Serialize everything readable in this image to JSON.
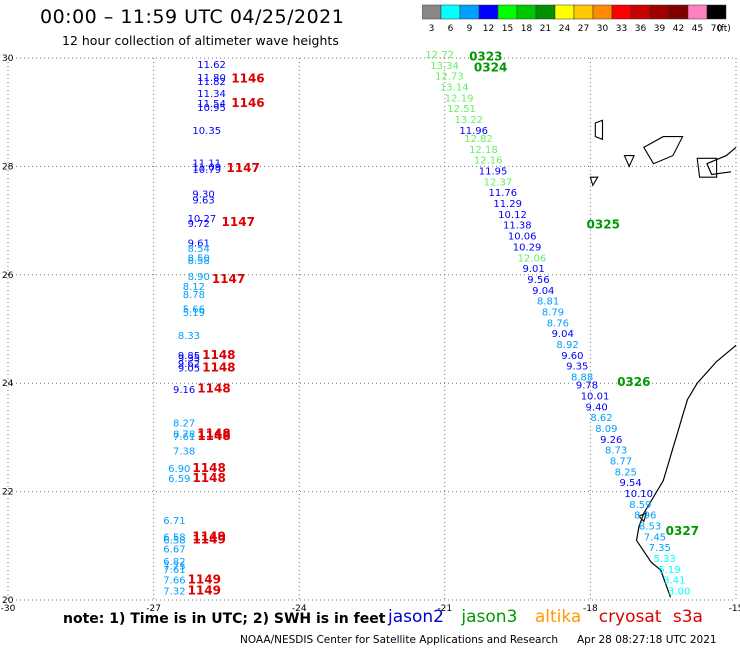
{
  "title": "00:00 – 11:59 UTC 04/25/2021",
  "subtitle": "12 hour collection of altimeter wave heights",
  "scale": {
    "labels": [
      "3",
      "6",
      "9",
      "12",
      "15",
      "18",
      "21",
      "24",
      "27",
      "30",
      "33",
      "36",
      "39",
      "42",
      "45",
      "70",
      "(ft)"
    ],
    "colors": [
      "#888888",
      "#00ffff",
      "#00a0ff",
      "#0000ff",
      "#00ff00",
      "#00c800",
      "#009000",
      "#ffff00",
      "#ffc800",
      "#ff8c00",
      "#ff0000",
      "#c80000",
      "#a00000",
      "#800000",
      "#ff80c0",
      "#000000"
    ]
  },
  "axes": {
    "x_ticks": [
      "-30",
      "-27",
      "-24",
      "-21",
      "-18",
      "-15"
    ],
    "y_ticks": [
      "20",
      "22",
      "24",
      "26",
      "28",
      "30"
    ],
    "xlim": [
      -30,
      -15
    ],
    "ylim": [
      20,
      30
    ]
  },
  "satellites": {
    "jason2": {
      "label": "jason2",
      "color": "#0000cc"
    },
    "jason3": {
      "label": "jason3",
      "color": "#009900"
    },
    "altika": {
      "label": "altika",
      "color": "#ff9900"
    },
    "cryosat": {
      "label": "cryosat",
      "color": "#dd0000"
    },
    "s3a": {
      "label": "s3a",
      "color": "#dd0000"
    }
  },
  "note": "note: 1) Time is in UTC; 2) SWH is in feet",
  "footer": {
    "org": "NOAA/NESDIS Center for Satellite Applications and Research",
    "generated": "Apr 28 08:27:18 UTC 2021"
  },
  "map_data": {
    "track_west": [
      {
        "lon": -26.1,
        "lat": 29.82,
        "v": "11.62",
        "c": "#0000ff"
      },
      {
        "lon": -26.1,
        "lat": 29.58,
        "v": "11.80",
        "c": "#0000ff"
      },
      {
        "lon": -26.1,
        "lat": 29.5,
        "v": "11.82",
        "c": "#0000ff"
      },
      {
        "lon": -26.1,
        "lat": 29.28,
        "v": "11.34",
        "c": "#0000ff"
      },
      {
        "lon": -26.1,
        "lat": 29.1,
        "v": "11.54",
        "c": "#0000ff"
      },
      {
        "lon": -26.1,
        "lat": 29.02,
        "v": "10.95",
        "c": "#0000ff"
      },
      {
        "lon": -26.2,
        "lat": 28.6,
        "v": "10.35",
        "c": "#0000ff"
      },
      {
        "lon": -26.2,
        "lat": 28.0,
        "v": "11.11",
        "c": "#0000ff"
      },
      {
        "lon": -26.2,
        "lat": 27.92,
        "v": "11.09",
        "c": "#0000ff"
      },
      {
        "lon": -26.2,
        "lat": 27.88,
        "v": "10.79",
        "c": "#0000ff"
      },
      {
        "lon": -26.2,
        "lat": 27.43,
        "v": "9.30",
        "c": "#0000ff"
      },
      {
        "lon": -26.2,
        "lat": 27.32,
        "v": "9.63",
        "c": "#0000ff"
      },
      {
        "lon": -26.3,
        "lat": 26.97,
        "v": "10.27",
        "c": "#0000ff"
      },
      {
        "lon": -26.3,
        "lat": 26.88,
        "v": "9.72",
        "c": "#0000ff"
      },
      {
        "lon": -26.3,
        "lat": 26.52,
        "v": "9.61",
        "c": "#0000ff"
      },
      {
        "lon": -26.3,
        "lat": 26.42,
        "v": "8.54",
        "c": "#00a0ff"
      },
      {
        "lon": -26.3,
        "lat": 26.25,
        "v": "8.50",
        "c": "#00a0ff"
      },
      {
        "lon": -26.3,
        "lat": 26.2,
        "v": "8.58",
        "c": "#00a0ff"
      },
      {
        "lon": -26.3,
        "lat": 25.9,
        "v": "8.90",
        "c": "#00a0ff"
      },
      {
        "lon": -26.4,
        "lat": 25.72,
        "v": "8.12",
        "c": "#00a0ff"
      },
      {
        "lon": -26.4,
        "lat": 25.57,
        "v": "8.78",
        "c": "#00a0ff"
      },
      {
        "lon": -26.4,
        "lat": 25.3,
        "v": "5.66",
        "c": "#00a0ff"
      },
      {
        "lon": -26.4,
        "lat": 25.24,
        "v": "5.19",
        "c": "#00a0ff"
      },
      {
        "lon": -26.5,
        "lat": 24.82,
        "v": "8.33",
        "c": "#00a0ff"
      },
      {
        "lon": -26.5,
        "lat": 24.45,
        "v": "9.85",
        "c": "#0000ff"
      },
      {
        "lon": -26.5,
        "lat": 24.4,
        "v": "9.35",
        "c": "#0000ff"
      },
      {
        "lon": -26.5,
        "lat": 24.3,
        "v": "9.62",
        "c": "#0000ff"
      },
      {
        "lon": -26.5,
        "lat": 24.22,
        "v": "9.05",
        "c": "#0000ff"
      },
      {
        "lon": -26.6,
        "lat": 23.82,
        "v": "9.16",
        "c": "#0000ff"
      },
      {
        "lon": -26.6,
        "lat": 23.2,
        "v": "8.27",
        "c": "#00a0ff"
      },
      {
        "lon": -26.6,
        "lat": 23.0,
        "v": "8.78",
        "c": "#00a0ff"
      },
      {
        "lon": -26.6,
        "lat": 22.95,
        "v": "7.61",
        "c": "#00a0ff"
      },
      {
        "lon": -26.6,
        "lat": 22.68,
        "v": "7.38",
        "c": "#00a0ff"
      },
      {
        "lon": -26.7,
        "lat": 22.36,
        "v": "6.90",
        "c": "#00a0ff"
      },
      {
        "lon": -26.7,
        "lat": 22.18,
        "v": "6.59",
        "c": "#00a0ff"
      },
      {
        "lon": -26.8,
        "lat": 21.4,
        "v": "6.71",
        "c": "#00a0ff"
      },
      {
        "lon": -26.8,
        "lat": 21.1,
        "v": "6.58",
        "c": "#00a0ff"
      },
      {
        "lon": -26.8,
        "lat": 21.04,
        "v": "6.58",
        "c": "#00a0ff"
      },
      {
        "lon": -26.8,
        "lat": 20.88,
        "v": "6.67",
        "c": "#00a0ff"
      },
      {
        "lon": -26.8,
        "lat": 20.65,
        "v": "6.82",
        "c": "#00a0ff"
      },
      {
        "lon": -26.8,
        "lat": 20.56,
        "v": "7.75",
        "c": "#00a0ff"
      },
      {
        "lon": -26.8,
        "lat": 20.5,
        "v": "7.61",
        "c": "#00a0ff"
      },
      {
        "lon": -26.8,
        "lat": 20.3,
        "v": "7.66",
        "c": "#00a0ff"
      },
      {
        "lon": -26.8,
        "lat": 20.1,
        "v": "7.32",
        "c": "#00a0ff"
      }
    ],
    "times_west": [
      {
        "lon": -25.4,
        "lat": 29.55,
        "t": "1146"
      },
      {
        "lon": -25.4,
        "lat": 29.1,
        "t": "1146"
      },
      {
        "lon": -25.5,
        "lat": 27.9,
        "t": "1147"
      },
      {
        "lon": -25.6,
        "lat": 26.9,
        "t": "1147"
      },
      {
        "lon": -25.8,
        "lat": 25.85,
        "t": "1147"
      },
      {
        "lon": -26.0,
        "lat": 24.45,
        "t": "1148"
      },
      {
        "lon": -26.0,
        "lat": 24.22,
        "t": "1148"
      },
      {
        "lon": -26.1,
        "lat": 23.83,
        "t": "1148"
      },
      {
        "lon": -26.1,
        "lat": 23.0,
        "t": "1148"
      },
      {
        "lon": -26.1,
        "lat": 22.95,
        "t": "1148"
      },
      {
        "lon": -26.2,
        "lat": 22.36,
        "t": "1148"
      },
      {
        "lon": -26.2,
        "lat": 22.18,
        "t": "1148"
      },
      {
        "lon": -26.2,
        "lat": 21.1,
        "t": "1149"
      },
      {
        "lon": -26.2,
        "lat": 21.04,
        "t": "1149"
      },
      {
        "lon": -26.3,
        "lat": 20.3,
        "t": "1149"
      },
      {
        "lon": -26.3,
        "lat": 20.1,
        "t": "1149"
      }
    ],
    "track_east": [
      {
        "lon": -21.4,
        "lat": 30.0,
        "v": "12.72",
        "c": "#66ee66"
      },
      {
        "lon": -21.3,
        "lat": 29.8,
        "v": "13.34",
        "c": "#66ee66"
      },
      {
        "lon": -21.2,
        "lat": 29.6,
        "v": "12.73",
        "c": "#66ee66"
      },
      {
        "lon": -21.1,
        "lat": 29.4,
        "v": "13.14",
        "c": "#66ee66"
      },
      {
        "lon": -21.0,
        "lat": 29.2,
        "v": "12.19",
        "c": "#66ee66"
      },
      {
        "lon": -20.95,
        "lat": 29.0,
        "v": "12.51",
        "c": "#66ee66"
      },
      {
        "lon": -20.8,
        "lat": 28.8,
        "v": "13.22",
        "c": "#66ee66"
      },
      {
        "lon": -20.7,
        "lat": 28.6,
        "v": "11.96",
        "c": "#0000ff"
      },
      {
        "lon": -20.6,
        "lat": 28.45,
        "v": "12.82",
        "c": "#66ee66"
      },
      {
        "lon": -20.5,
        "lat": 28.25,
        "v": "12.18",
        "c": "#66ee66"
      },
      {
        "lon": -20.4,
        "lat": 28.05,
        "v": "12.16",
        "c": "#66ee66"
      },
      {
        "lon": -20.3,
        "lat": 27.85,
        "v": "11.95",
        "c": "#0000ff"
      },
      {
        "lon": -20.2,
        "lat": 27.65,
        "v": "12.37",
        "c": "#66ee66"
      },
      {
        "lon": -20.1,
        "lat": 27.45,
        "v": "11.76",
        "c": "#0000ff"
      },
      {
        "lon": -20.0,
        "lat": 27.25,
        "v": "11.29",
        "c": "#0000ff"
      },
      {
        "lon": -19.9,
        "lat": 27.05,
        "v": "10.12",
        "c": "#0000ff"
      },
      {
        "lon": -19.8,
        "lat": 26.85,
        "v": "11.38",
        "c": "#0000ff"
      },
      {
        "lon": -19.7,
        "lat": 26.65,
        "v": "10.06",
        "c": "#0000ff"
      },
      {
        "lon": -19.6,
        "lat": 26.45,
        "v": "10.29",
        "c": "#0000ff"
      },
      {
        "lon": -19.5,
        "lat": 26.25,
        "v": "12.06",
        "c": "#66ee66"
      },
      {
        "lon": -19.4,
        "lat": 26.05,
        "v": "9.01",
        "c": "#0000ff"
      },
      {
        "lon": -19.3,
        "lat": 25.85,
        "v": "9.56",
        "c": "#0000ff"
      },
      {
        "lon": -19.2,
        "lat": 25.65,
        "v": "9.04",
        "c": "#0000ff"
      },
      {
        "lon": -19.1,
        "lat": 25.45,
        "v": "8.81",
        "c": "#00a0ff"
      },
      {
        "lon": -19.0,
        "lat": 25.25,
        "v": "8.79",
        "c": "#00a0ff"
      },
      {
        "lon": -18.9,
        "lat": 25.05,
        "v": "8.76",
        "c": "#00a0ff"
      },
      {
        "lon": -18.8,
        "lat": 24.85,
        "v": "9.04",
        "c": "#0000ff"
      },
      {
        "lon": -18.7,
        "lat": 24.65,
        "v": "8.92",
        "c": "#00a0ff"
      },
      {
        "lon": -18.6,
        "lat": 24.45,
        "v": "9.60",
        "c": "#0000ff"
      },
      {
        "lon": -18.5,
        "lat": 24.25,
        "v": "9.35",
        "c": "#0000ff"
      },
      {
        "lon": -18.4,
        "lat": 24.05,
        "v": "8.88",
        "c": "#00a0ff"
      },
      {
        "lon": -18.3,
        "lat": 23.9,
        "v": "9.78",
        "c": "#0000ff"
      },
      {
        "lon": -18.2,
        "lat": 23.7,
        "v": "10.01",
        "c": "#0000ff"
      },
      {
        "lon": -18.1,
        "lat": 23.5,
        "v": "9.40",
        "c": "#0000ff"
      },
      {
        "lon": -18.0,
        "lat": 23.3,
        "v": "8.62",
        "c": "#00a0ff"
      },
      {
        "lon": -17.9,
        "lat": 23.1,
        "v": "8.09",
        "c": "#00a0ff"
      },
      {
        "lon": -17.8,
        "lat": 22.9,
        "v": "9.26",
        "c": "#0000ff"
      },
      {
        "lon": -17.7,
        "lat": 22.7,
        "v": "8.73",
        "c": "#00a0ff"
      },
      {
        "lon": -17.6,
        "lat": 22.5,
        "v": "8.77",
        "c": "#00a0ff"
      },
      {
        "lon": -17.5,
        "lat": 22.3,
        "v": "8.25",
        "c": "#00a0ff"
      },
      {
        "lon": -17.4,
        "lat": 22.1,
        "v": "9.54",
        "c": "#0000ff"
      },
      {
        "lon": -17.3,
        "lat": 21.9,
        "v": "10.10",
        "c": "#0000ff"
      },
      {
        "lon": -17.2,
        "lat": 21.7,
        "v": "8.59",
        "c": "#00a0ff"
      },
      {
        "lon": -17.1,
        "lat": 21.5,
        "v": "8.96",
        "c": "#00a0ff"
      },
      {
        "lon": -17.0,
        "lat": 21.3,
        "v": "8.53",
        "c": "#00a0ff"
      },
      {
        "lon": -16.9,
        "lat": 21.1,
        "v": "7.45",
        "c": "#00a0ff"
      },
      {
        "lon": -16.8,
        "lat": 20.9,
        "v": "7.35",
        "c": "#00a0ff"
      },
      {
        "lon": -16.7,
        "lat": 20.7,
        "v": "5.33",
        "c": "#00ffff"
      },
      {
        "lon": -16.6,
        "lat": 20.5,
        "v": "5.19",
        "c": "#00ffff"
      },
      {
        "lon": -16.5,
        "lat": 20.3,
        "v": "3.41",
        "c": "#00ffff"
      },
      {
        "lon": -16.4,
        "lat": 20.1,
        "v": "3.00",
        "c": "#00ffff"
      }
    ],
    "times_east": [
      {
        "lon": -20.5,
        "lat": 29.95,
        "t": "0323"
      },
      {
        "lon": -20.4,
        "lat": 29.75,
        "t": "0324"
      },
      {
        "lon": -18.08,
        "lat": 26.85,
        "t": "0325"
      },
      {
        "lon": -17.45,
        "lat": 23.95,
        "t": "0326"
      },
      {
        "lon": -16.45,
        "lat": 21.2,
        "t": "0327"
      }
    ]
  }
}
